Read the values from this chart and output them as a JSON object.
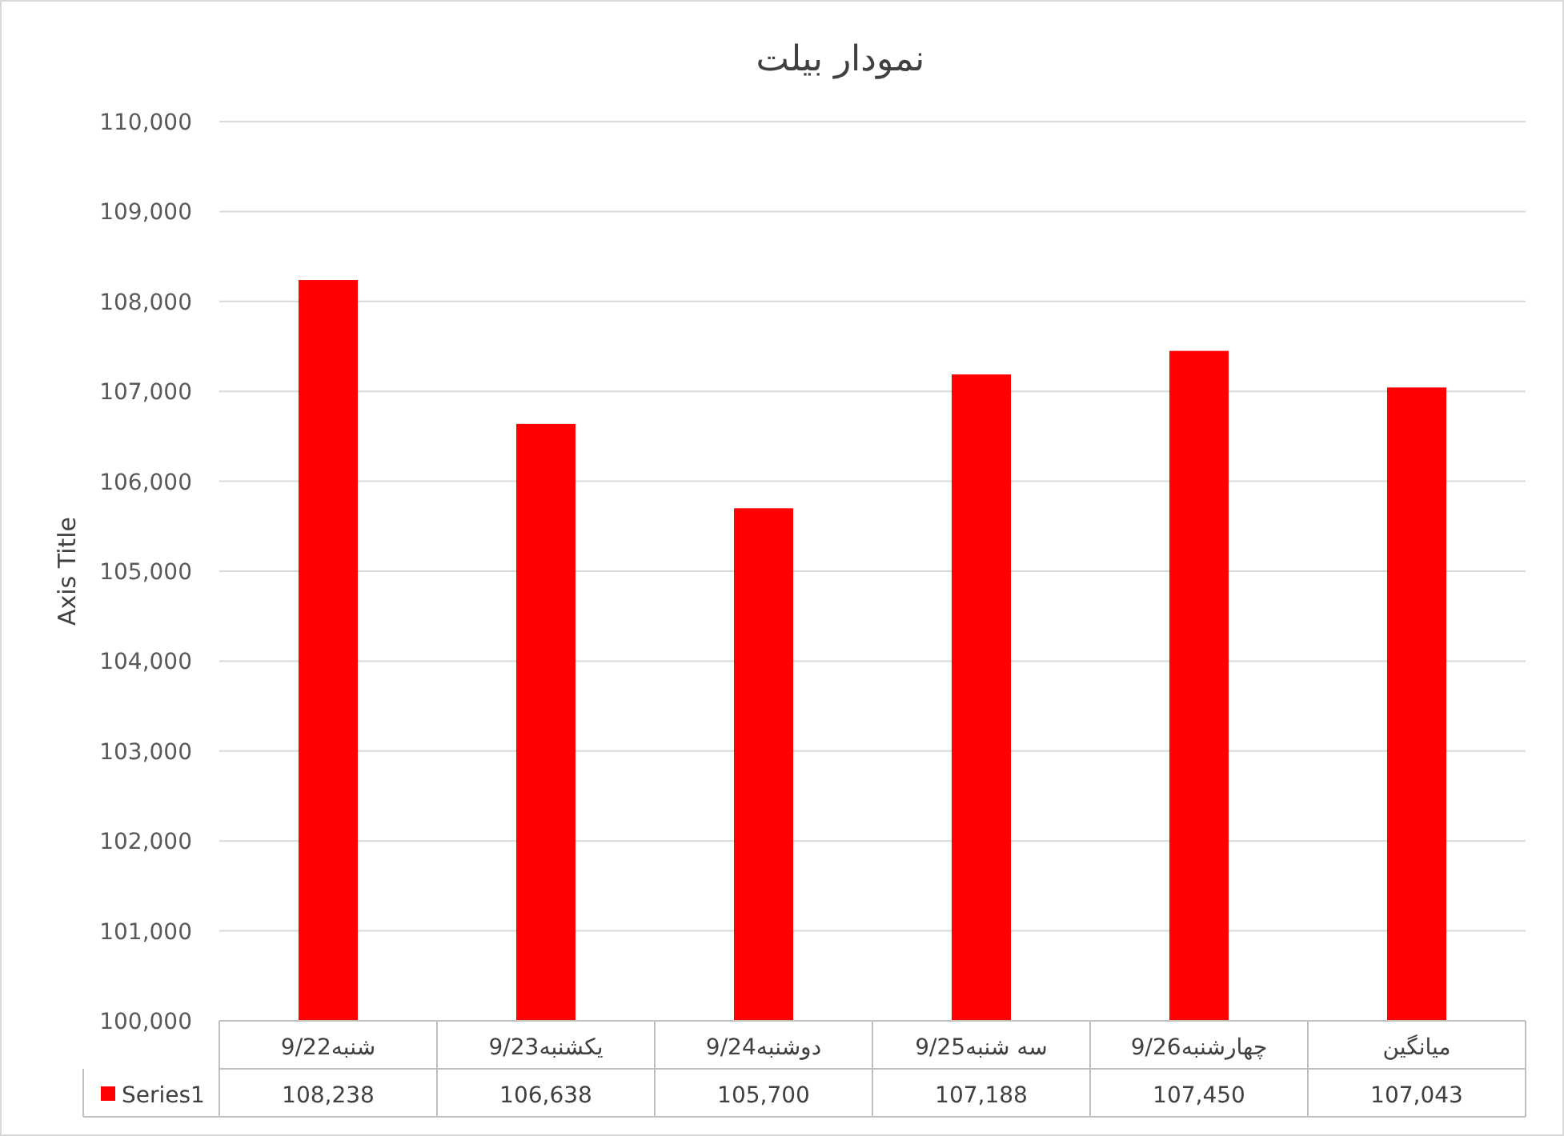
{
  "chart_data": {
    "type": "bar",
    "title": "نمودار بیلت",
    "ylabel": "Axis Title",
    "categories": [
      "شنبه9/22",
      "یکشنبه9/23",
      "دوشنبه9/24",
      "سه شنبه9/25",
      "چهارشنبه9/26",
      "میانگین"
    ],
    "series": [
      {
        "name": "Series1",
        "color": "#ff0000",
        "values": [
          108238,
          106638,
          105700,
          107188,
          107450,
          107043
        ],
        "value_labels": [
          "108,238",
          "106,638",
          "105,700",
          "107,188",
          "107,450",
          "107,043"
        ]
      }
    ],
    "ylim": [
      100000,
      110000
    ],
    "yticks": [
      {
        "value": 100000,
        "label": "100,000"
      },
      {
        "value": 101000,
        "label": "101,000"
      },
      {
        "value": 102000,
        "label": "102,000"
      },
      {
        "value": 103000,
        "label": "103,000"
      },
      {
        "value": 104000,
        "label": "104,000"
      },
      {
        "value": 105000,
        "label": "105,000"
      },
      {
        "value": 106000,
        "label": "106,000"
      },
      {
        "value": 107000,
        "label": "107,000"
      },
      {
        "value": 108000,
        "label": "108,000"
      },
      {
        "value": 109000,
        "label": "109,000"
      },
      {
        "value": 110000,
        "label": "110,000"
      }
    ],
    "grid": "y",
    "legend": "bottom"
  }
}
